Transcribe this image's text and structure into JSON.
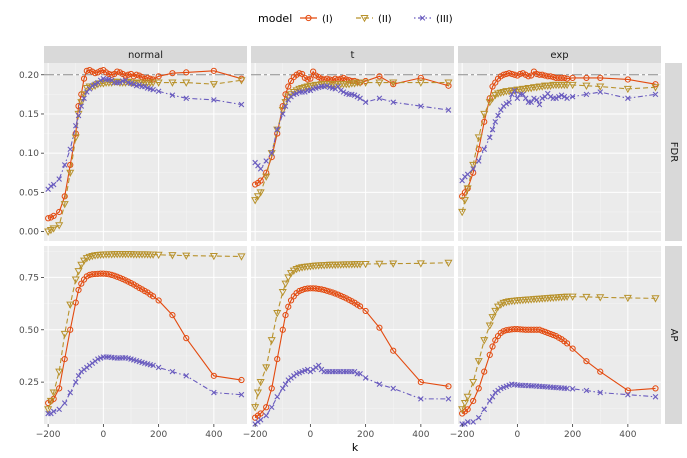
{
  "chart_data": {
    "type": "line",
    "legend_title": "model",
    "legend_position": "top",
    "xlabel": "k",
    "xlim": [
      -215,
      520
    ],
    "x_ticks": [
      -200,
      0,
      200,
      400
    ],
    "x_tick_labels": [
      "−200",
      "0",
      "200",
      "400"
    ],
    "col_facets": [
      "normal",
      "t",
      "exp"
    ],
    "row_facets": [
      "FDR",
      "AP"
    ],
    "reference_line": {
      "row": "FDR",
      "y": 0.2
    },
    "rows": [
      {
        "name": "FDR",
        "ylim": [
          -0.012,
          0.215
        ],
        "y_ticks": [
          0,
          0.05,
          0.1,
          0.15,
          0.2
        ],
        "y_tick_labels": [
          "0.00",
          "0.05",
          "0.10",
          "0.15",
          "0.20"
        ]
      },
      {
        "name": "AP",
        "ylim": [
          0.05,
          0.9
        ],
        "y_ticks": [
          0.25,
          0.5,
          0.75
        ],
        "y_tick_labels": [
          "0.25",
          "0.50",
          "0.75"
        ]
      }
    ],
    "series": [
      {
        "name": "(I)",
        "color": "#E34A0F",
        "marker": "circle",
        "dash": "solid"
      },
      {
        "name": "(II)",
        "color": "#B8922C",
        "marker": "triangle-down",
        "dash": "dashed"
      },
      {
        "name": "(III)",
        "color": "#6A5CBF",
        "marker": "x",
        "dash": "dotdash"
      }
    ],
    "x": [
      -200,
      -190,
      -180,
      -160,
      -140,
      -120,
      -100,
      -90,
      -80,
      -70,
      -60,
      -50,
      -40,
      -30,
      -20,
      -10,
      0,
      10,
      20,
      30,
      40,
      50,
      60,
      70,
      80,
      90,
      100,
      110,
      120,
      130,
      140,
      150,
      160,
      170,
      180,
      200,
      250,
      300,
      400,
      500
    ],
    "panels": {
      "normal": {
        "FDR": {
          "(I)": [
            0.017,
            0.018,
            0.02,
            0.025,
            0.045,
            0.085,
            0.125,
            0.16,
            0.175,
            0.195,
            0.205,
            0.206,
            0.204,
            0.202,
            0.203,
            0.205,
            0.206,
            0.203,
            0.201,
            0.2,
            0.201,
            0.204,
            0.203,
            0.201,
            0.199,
            0.2,
            0.201,
            0.198,
            0.2,
            0.199,
            0.197,
            0.195,
            0.196,
            0.195,
            0.194,
            0.198,
            0.202,
            0.203,
            0.205,
            0.195
          ],
          "(II)": [
            0.0,
            0.002,
            0.004,
            0.008,
            0.035,
            0.075,
            0.12,
            0.15,
            0.165,
            0.175,
            0.183,
            0.185,
            0.185,
            0.186,
            0.188,
            0.189,
            0.189,
            0.19,
            0.19,
            0.19,
            0.191,
            0.191,
            0.19,
            0.19,
            0.19,
            0.191,
            0.19,
            0.19,
            0.189,
            0.19,
            0.19,
            0.19,
            0.19,
            0.19,
            0.19,
            0.19,
            0.19,
            0.19,
            0.188,
            0.193
          ],
          "(III)": [
            0.054,
            0.058,
            0.06,
            0.067,
            0.085,
            0.105,
            0.135,
            0.148,
            0.16,
            0.17,
            0.178,
            0.182,
            0.186,
            0.188,
            0.19,
            0.193,
            0.195,
            0.194,
            0.194,
            0.193,
            0.19,
            0.19,
            0.19,
            0.192,
            0.193,
            0.19,
            0.189,
            0.188,
            0.186,
            0.187,
            0.185,
            0.185,
            0.183,
            0.182,
            0.181,
            0.179,
            0.174,
            0.17,
            0.168,
            0.162
          ]
        },
        "AP": {
          "(I)": [
            0.15,
            0.16,
            0.17,
            0.22,
            0.36,
            0.5,
            0.63,
            0.69,
            0.72,
            0.74,
            0.755,
            0.762,
            0.765,
            0.766,
            0.767,
            0.768,
            0.768,
            0.767,
            0.765,
            0.762,
            0.758,
            0.753,
            0.748,
            0.742,
            0.736,
            0.73,
            0.723,
            0.716,
            0.708,
            0.7,
            0.693,
            0.685,
            0.678,
            0.668,
            0.66,
            0.64,
            0.57,
            0.46,
            0.28,
            0.26
          ],
          "(II)": [
            0.12,
            0.16,
            0.2,
            0.3,
            0.48,
            0.62,
            0.74,
            0.78,
            0.81,
            0.83,
            0.842,
            0.848,
            0.852,
            0.855,
            0.857,
            0.858,
            0.859,
            0.86,
            0.86,
            0.86,
            0.861,
            0.861,
            0.861,
            0.861,
            0.861,
            0.861,
            0.861,
            0.86,
            0.86,
            0.86,
            0.86,
            0.86,
            0.86,
            0.859,
            0.859,
            0.858,
            0.856,
            0.854,
            0.852,
            0.85
          ],
          "(III)": [
            0.1,
            0.1,
            0.11,
            0.12,
            0.15,
            0.2,
            0.25,
            0.28,
            0.3,
            0.31,
            0.32,
            0.33,
            0.34,
            0.35,
            0.36,
            0.365,
            0.37,
            0.37,
            0.37,
            0.368,
            0.366,
            0.365,
            0.365,
            0.366,
            0.366,
            0.364,
            0.36,
            0.356,
            0.352,
            0.348,
            0.344,
            0.34,
            0.337,
            0.333,
            0.33,
            0.32,
            0.3,
            0.28,
            0.2,
            0.19
          ]
        }
      },
      "t": {
        "FDR": {
          "(I)": [
            0.06,
            0.062,
            0.065,
            0.075,
            0.095,
            0.125,
            0.16,
            0.175,
            0.185,
            0.192,
            0.197,
            0.2,
            0.202,
            0.201,
            0.196,
            0.194,
            0.195,
            0.204,
            0.199,
            0.197,
            0.195,
            0.194,
            0.195,
            0.194,
            0.193,
            0.195,
            0.194,
            0.195,
            0.196,
            0.194,
            0.193,
            0.192,
            0.192,
            0.191,
            0.19,
            0.192,
            0.198,
            0.188,
            0.196,
            0.186
          ],
          "(II)": [
            0.04,
            0.045,
            0.05,
            0.07,
            0.1,
            0.13,
            0.155,
            0.165,
            0.172,
            0.175,
            0.178,
            0.18,
            0.182,
            0.183,
            0.184,
            0.185,
            0.186,
            0.186,
            0.187,
            0.187,
            0.188,
            0.188,
            0.188,
            0.188,
            0.188,
            0.188,
            0.188,
            0.188,
            0.188,
            0.188,
            0.188,
            0.189,
            0.189,
            0.19,
            0.19,
            0.19,
            0.19,
            0.19,
            0.19,
            0.19
          ],
          "(III)": [
            0.088,
            0.084,
            0.08,
            0.09,
            0.1,
            0.13,
            0.15,
            0.16,
            0.168,
            0.172,
            0.175,
            0.176,
            0.178,
            0.178,
            0.178,
            0.18,
            0.18,
            0.182,
            0.183,
            0.184,
            0.185,
            0.185,
            0.186,
            0.184,
            0.183,
            0.182,
            0.185,
            0.18,
            0.178,
            0.176,
            0.175,
            0.175,
            0.174,
            0.172,
            0.17,
            0.165,
            0.17,
            0.165,
            0.16,
            0.155
          ]
        },
        "AP": {
          "(I)": [
            0.08,
            0.09,
            0.1,
            0.13,
            0.22,
            0.36,
            0.5,
            0.57,
            0.61,
            0.64,
            0.66,
            0.675,
            0.685,
            0.69,
            0.695,
            0.697,
            0.698,
            0.698,
            0.697,
            0.695,
            0.693,
            0.69,
            0.686,
            0.682,
            0.678,
            0.673,
            0.668,
            0.662,
            0.656,
            0.65,
            0.643,
            0.636,
            0.629,
            0.62,
            0.612,
            0.59,
            0.51,
            0.4,
            0.25,
            0.23
          ],
          "(II)": [
            0.13,
            0.2,
            0.25,
            0.32,
            0.45,
            0.58,
            0.68,
            0.72,
            0.75,
            0.77,
            0.782,
            0.79,
            0.795,
            0.798,
            0.8,
            0.802,
            0.803,
            0.805,
            0.806,
            0.807,
            0.808,
            0.808,
            0.809,
            0.81,
            0.81,
            0.81,
            0.811,
            0.811,
            0.812,
            0.812,
            0.812,
            0.812,
            0.813,
            0.813,
            0.813,
            0.814,
            0.815,
            0.816,
            0.817,
            0.82
          ],
          "(III)": [
            0.05,
            0.06,
            0.07,
            0.09,
            0.13,
            0.18,
            0.22,
            0.24,
            0.26,
            0.27,
            0.28,
            0.29,
            0.295,
            0.3,
            0.305,
            0.31,
            0.3,
            0.31,
            0.32,
            0.33,
            0.31,
            0.3,
            0.3,
            0.3,
            0.3,
            0.3,
            0.3,
            0.3,
            0.3,
            0.3,
            0.3,
            0.3,
            0.3,
            0.29,
            0.29,
            0.27,
            0.24,
            0.22,
            0.17,
            0.17
          ]
        }
      },
      "exp": {
        "FDR": {
          "(I)": [
            0.045,
            0.05,
            0.055,
            0.075,
            0.105,
            0.14,
            0.17,
            0.185,
            0.19,
            0.195,
            0.198,
            0.2,
            0.201,
            0.202,
            0.201,
            0.2,
            0.199,
            0.201,
            0.202,
            0.2,
            0.198,
            0.199,
            0.204,
            0.201,
            0.2,
            0.2,
            0.199,
            0.198,
            0.198,
            0.197,
            0.196,
            0.196,
            0.196,
            0.196,
            0.195,
            0.196,
            0.196,
            0.196,
            0.194,
            0.188
          ],
          "(II)": [
            0.025,
            0.04,
            0.055,
            0.085,
            0.12,
            0.15,
            0.165,
            0.17,
            0.174,
            0.176,
            0.177,
            0.178,
            0.179,
            0.179,
            0.18,
            0.18,
            0.181,
            0.181,
            0.182,
            0.182,
            0.183,
            0.183,
            0.184,
            0.184,
            0.185,
            0.185,
            0.186,
            0.186,
            0.186,
            0.187,
            0.187,
            0.187,
            0.187,
            0.187,
            0.187,
            0.187,
            0.186,
            0.185,
            0.182,
            0.184
          ],
          "(III)": [
            0.065,
            0.07,
            0.073,
            0.08,
            0.09,
            0.105,
            0.12,
            0.13,
            0.14,
            0.148,
            0.155,
            0.16,
            0.163,
            0.165,
            0.175,
            0.18,
            0.17,
            0.175,
            0.175,
            0.17,
            0.165,
            0.165,
            0.17,
            0.168,
            0.162,
            0.17,
            0.172,
            0.176,
            0.172,
            0.17,
            0.17,
            0.172,
            0.174,
            0.172,
            0.17,
            0.172,
            0.175,
            0.178,
            0.17,
            0.175
          ]
        },
        "AP": {
          "(I)": [
            0.1,
            0.11,
            0.12,
            0.16,
            0.22,
            0.3,
            0.38,
            0.42,
            0.45,
            0.47,
            0.485,
            0.493,
            0.498,
            0.5,
            0.502,
            0.503,
            0.503,
            0.502,
            0.501,
            0.5,
            0.5,
            0.5,
            0.5,
            0.5,
            0.5,
            0.495,
            0.49,
            0.485,
            0.48,
            0.475,
            0.47,
            0.462,
            0.455,
            0.445,
            0.435,
            0.41,
            0.35,
            0.3,
            0.21,
            0.22
          ],
          "(II)": [
            0.12,
            0.15,
            0.18,
            0.25,
            0.35,
            0.45,
            0.52,
            0.56,
            0.59,
            0.61,
            0.62,
            0.628,
            0.632,
            0.635,
            0.637,
            0.638,
            0.64,
            0.641,
            0.642,
            0.643,
            0.644,
            0.645,
            0.646,
            0.647,
            0.648,
            0.649,
            0.65,
            0.651,
            0.652,
            0.653,
            0.654,
            0.655,
            0.656,
            0.657,
            0.658,
            0.658,
            0.657,
            0.655,
            0.652,
            0.65
          ],
          "(III)": [
            0.05,
            0.05,
            0.06,
            0.06,
            0.08,
            0.12,
            0.16,
            0.18,
            0.2,
            0.21,
            0.22,
            0.225,
            0.23,
            0.235,
            0.24,
            0.238,
            0.236,
            0.235,
            0.234,
            0.234,
            0.233,
            0.232,
            0.232,
            0.231,
            0.23,
            0.229,
            0.228,
            0.227,
            0.226,
            0.225,
            0.224,
            0.223,
            0.222,
            0.221,
            0.22,
            0.218,
            0.21,
            0.2,
            0.19,
            0.18
          ]
        }
      }
    }
  }
}
